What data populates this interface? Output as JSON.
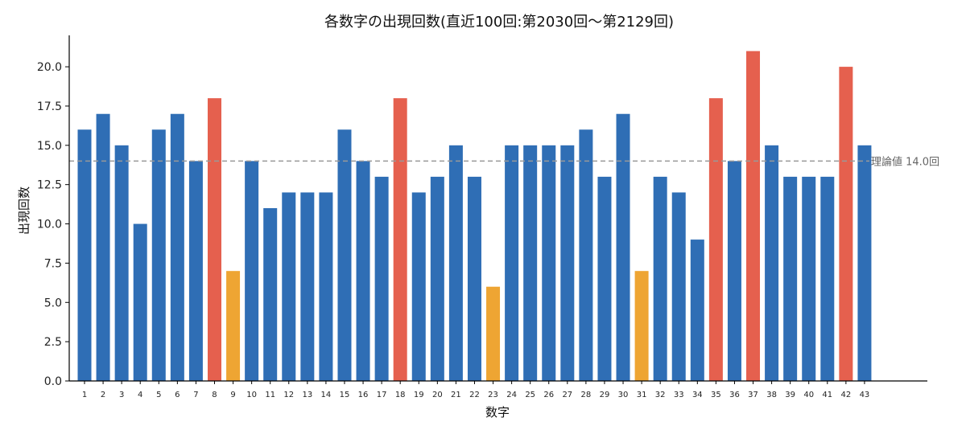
{
  "chart_data": {
    "type": "bar",
    "title": "各数字の出現回数(直近100回:第2030回～第2129回)",
    "xlabel": "数字",
    "ylabel": "出現回数",
    "ylim": [
      0,
      22
    ],
    "yticks": [
      "0.0",
      "2.5",
      "5.0",
      "7.5",
      "10.0",
      "12.5",
      "15.0",
      "17.5",
      "20.0"
    ],
    "categories": [
      "1",
      "2",
      "3",
      "4",
      "5",
      "6",
      "7",
      "8",
      "9",
      "10",
      "11",
      "12",
      "13",
      "14",
      "15",
      "16",
      "17",
      "18",
      "19",
      "20",
      "21",
      "22",
      "23",
      "24",
      "25",
      "26",
      "27",
      "28",
      "29",
      "30",
      "31",
      "32",
      "33",
      "34",
      "35",
      "36",
      "37",
      "38",
      "39",
      "40",
      "41",
      "42",
      "43"
    ],
    "values": [
      16,
      17,
      15,
      10,
      16,
      17,
      14,
      18,
      7,
      14,
      11,
      12,
      12,
      12,
      16,
      14,
      13,
      18,
      12,
      13,
      15,
      13,
      6,
      15,
      15,
      15,
      15,
      16,
      13,
      17,
      7,
      13,
      12,
      9,
      18,
      14,
      21,
      15,
      13,
      13,
      13,
      20,
      15
    ],
    "highlight": [
      "normal",
      "normal",
      "normal",
      "normal",
      "normal",
      "normal",
      "normal",
      "hot",
      "cold",
      "normal",
      "normal",
      "normal",
      "normal",
      "normal",
      "normal",
      "normal",
      "normal",
      "hot",
      "normal",
      "normal",
      "normal",
      "normal",
      "cold",
      "normal",
      "normal",
      "normal",
      "normal",
      "normal",
      "normal",
      "normal",
      "cold",
      "normal",
      "normal",
      "normal",
      "hot",
      "normal",
      "hot",
      "normal",
      "normal",
      "normal",
      "normal",
      "hot",
      "normal"
    ],
    "reference_line": {
      "value": 14.0,
      "label": "理論値 14.0回",
      "color": "#999999"
    },
    "colors": {
      "normal": "#2f6eb5",
      "hot": "#e5604e",
      "cold": "#eea533"
    },
    "grid": false
  }
}
